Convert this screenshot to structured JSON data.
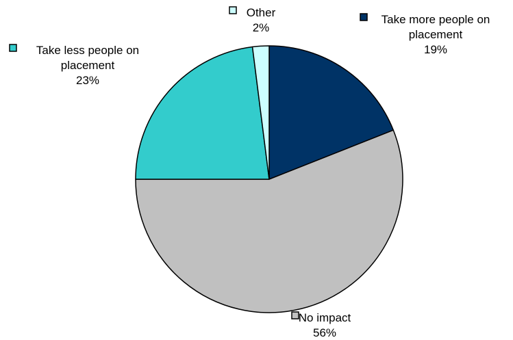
{
  "chart_data": {
    "type": "pie",
    "categories": [
      "Take more people on placement",
      "No impact",
      "Take less people on placement",
      "Other"
    ],
    "values": [
      19,
      56,
      23,
      2
    ],
    "value_labels": [
      "19%",
      "56%",
      "23%",
      "2%"
    ],
    "label_lines": [
      [
        "Take more people on",
        "placement"
      ],
      [
        "No impact"
      ],
      [
        "Take less people on",
        "placement"
      ],
      [
        "Other"
      ]
    ],
    "colors": [
      "#003366",
      "#C0C0C0",
      "#33CCCC",
      "#CCFFFF"
    ],
    "start": "12 o'clock",
    "direction": "clockwise",
    "legend": "labels beside slices with color keys"
  }
}
